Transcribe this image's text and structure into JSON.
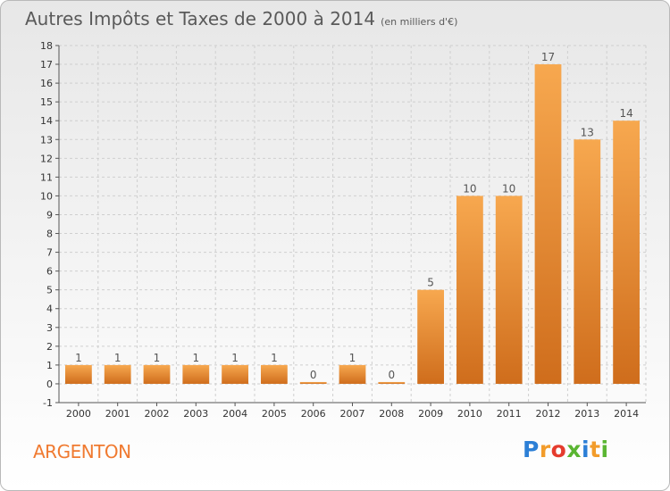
{
  "header": {
    "title": "Autres Impôts et Taxes de 2000 à 2014",
    "subtitle": "(en milliers d'€)"
  },
  "footer": {
    "place": "ARGENTON",
    "brand_letters": [
      "P",
      "r",
      "o",
      "x",
      "i",
      "t",
      "i"
    ],
    "brand_colors": [
      "#2c7fd6",
      "#f29c2b",
      "#e53c2e",
      "#5ab532",
      "#2c7fd6",
      "#f29c2b",
      "#5ab532"
    ]
  },
  "colors": {
    "bar_light": "#f7a84f",
    "bar_dark": "#cf6d1c",
    "axis": "#555555",
    "grid": "#cfcfcf"
  },
  "chart_data": {
    "type": "bar",
    "categories": [
      "2000",
      "2001",
      "2002",
      "2003",
      "2004",
      "2005",
      "2006",
      "2007",
      "2008",
      "2009",
      "2010",
      "2011",
      "2012",
      "2013",
      "2014"
    ],
    "values": [
      1,
      1,
      1,
      1,
      1,
      1,
      0,
      1,
      0,
      5,
      10,
      10,
      17,
      13,
      14
    ],
    "ylim": [
      -1,
      18
    ],
    "yticks": [
      -1,
      0,
      1,
      2,
      3,
      4,
      5,
      6,
      7,
      8,
      9,
      10,
      11,
      12,
      13,
      14,
      15,
      16,
      17,
      18
    ],
    "grid": true
  }
}
